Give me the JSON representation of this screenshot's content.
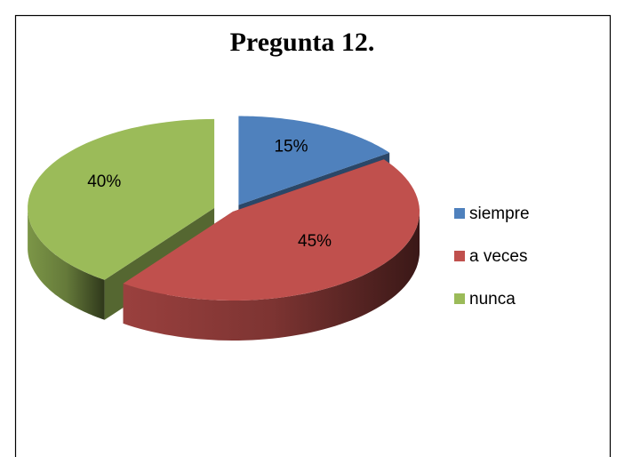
{
  "chart_data": {
    "type": "pie",
    "title": "Pregunta 12.",
    "categories": [
      "siempre",
      "a veces",
      "nunca"
    ],
    "values": [
      15,
      45,
      40
    ],
    "value_labels": [
      "15%",
      "45%",
      "40%"
    ],
    "colors": [
      "#4f81bd",
      "#c0504d",
      "#9bbb59"
    ],
    "legend": "right"
  }
}
